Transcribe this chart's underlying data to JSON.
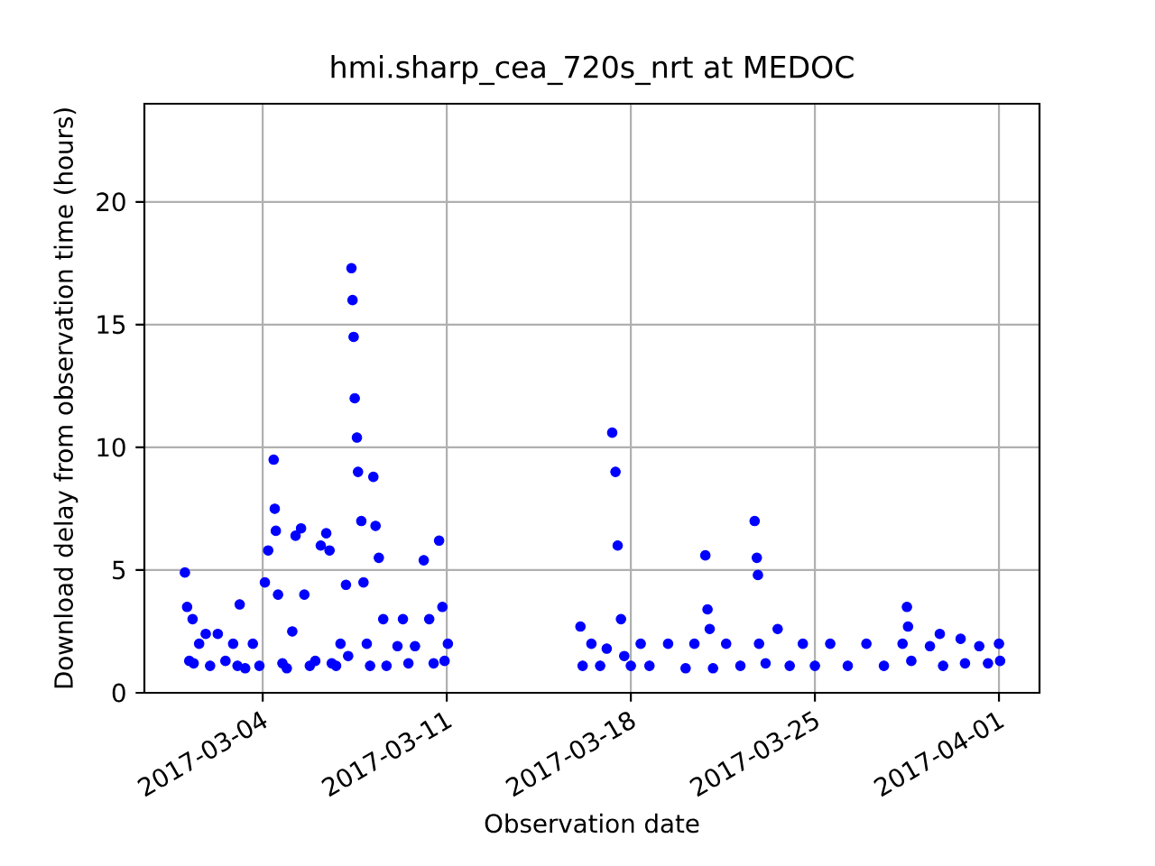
{
  "chart_data": {
    "type": "scatter",
    "title": "hmi.sharp_cea_720s_nrt at MEDOC",
    "xlabel": "Observation date",
    "ylabel": "Download delay from observation time (hours)",
    "x": [
      "2017-03-01T01:00",
      "2017-03-01T03:00",
      "2017-03-01T05:00",
      "2017-03-01T08:00",
      "2017-03-01T09:00",
      "2017-03-01T14:00",
      "2017-03-01T20:00",
      "2017-03-02T00:00",
      "2017-03-02T07:00",
      "2017-03-02T14:00",
      "2017-03-02T21:00",
      "2017-03-03T01:00",
      "2017-03-03T03:00",
      "2017-03-03T08:00",
      "2017-03-03T15:00",
      "2017-03-03T21:00",
      "2017-03-04T02:00",
      "2017-03-04T05:00",
      "2017-03-04T10:00",
      "2017-03-04T11:00",
      "2017-03-04T12:00",
      "2017-03-04T14:00",
      "2017-03-04T18:00",
      "2017-03-04T22:00",
      "2017-03-05T03:00",
      "2017-03-05T06:00",
      "2017-03-05T11:00",
      "2017-03-05T14:00",
      "2017-03-05T19:00",
      "2017-03-06T00:00",
      "2017-03-06T05:00",
      "2017-03-06T10:00",
      "2017-03-06T13:00",
      "2017-03-06T15:00",
      "2017-03-06T19:00",
      "2017-03-06T23:00",
      "2017-03-07T04:00",
      "2017-03-07T06:00",
      "2017-03-07T09:00",
      "2017-03-07T10:00",
      "2017-03-07T11:00",
      "2017-03-07T12:00",
      "2017-03-07T14:00",
      "2017-03-07T15:00",
      "2017-03-07T18:00",
      "2017-03-07T20:00",
      "2017-03-07T23:00",
      "2017-03-08T02:00",
      "2017-03-08T05:00",
      "2017-03-08T07:00",
      "2017-03-08T10:00",
      "2017-03-08T14:00",
      "2017-03-08T17:00",
      "2017-03-09T03:00",
      "2017-03-09T08:00",
      "2017-03-09T13:00",
      "2017-03-09T19:00",
      "2017-03-10T03:00",
      "2017-03-10T08:00",
      "2017-03-10T12:00",
      "2017-03-10T17:00",
      "2017-03-10T20:00",
      "2017-03-10T22:00",
      "2017-03-11T01:00",
      "2017-03-16T02:00",
      "2017-03-16T04:00",
      "2017-03-16T12:00",
      "2017-03-16T20:00",
      "2017-03-17T02:00",
      "2017-03-17T07:00",
      "2017-03-17T10:00",
      "2017-03-17T12:00",
      "2017-03-17T15:00",
      "2017-03-17T18:00",
      "2017-03-18T00:00",
      "2017-03-18T09:00",
      "2017-03-18T17:00",
      "2017-03-19T10:00",
      "2017-03-20T02:00",
      "2017-03-20T10:00",
      "2017-03-20T20:00",
      "2017-03-20T22:00",
      "2017-03-21T00:00",
      "2017-03-21T03:00",
      "2017-03-21T15:00",
      "2017-03-22T04:00",
      "2017-03-22T17:00",
      "2017-03-22T19:00",
      "2017-03-22T20:00",
      "2017-03-22T21:00",
      "2017-03-23T03:00",
      "2017-03-23T14:00",
      "2017-03-24T01:00",
      "2017-03-24T13:00",
      "2017-03-25T00:00",
      "2017-03-25T14:00",
      "2017-03-26T06:00",
      "2017-03-26T23:00",
      "2017-03-27T15:00",
      "2017-03-28T08:00",
      "2017-03-28T12:00",
      "2017-03-28T13:00",
      "2017-03-28T16:00",
      "2017-03-29T09:00",
      "2017-03-29T18:00",
      "2017-03-29T21:00",
      "2017-03-30T13:00",
      "2017-03-30T17:00",
      "2017-03-31T06:00",
      "2017-03-31T14:00",
      "2017-04-01T00:00",
      "2017-04-01T01:00"
    ],
    "values": [
      4.9,
      3.5,
      1.3,
      3.0,
      1.2,
      2.0,
      2.4,
      1.1,
      2.4,
      1.3,
      2.0,
      1.1,
      3.6,
      1.0,
      2.0,
      1.1,
      4.5,
      5.8,
      9.5,
      7.5,
      6.6,
      4.0,
      1.2,
      1.0,
      2.5,
      6.4,
      6.7,
      4.0,
      1.1,
      1.3,
      6.0,
      6.5,
      5.8,
      1.2,
      1.1,
      2.0,
      4.4,
      1.5,
      17.3,
      16.0,
      14.5,
      12.0,
      10.4,
      9.0,
      7.0,
      4.5,
      2.0,
      1.1,
      8.8,
      6.8,
      5.5,
      3.0,
      1.1,
      1.9,
      3.0,
      1.2,
      1.9,
      5.4,
      3.0,
      1.2,
      6.2,
      3.5,
      1.3,
      2.0,
      2.7,
      1.1,
      2.0,
      1.1,
      1.8,
      10.6,
      9.0,
      6.0,
      3.0,
      1.5,
      1.1,
      2.0,
      1.1,
      2.0,
      1.0,
      2.0,
      5.6,
      3.4,
      2.6,
      1.0,
      2.0,
      1.1,
      7.0,
      5.5,
      4.8,
      2.0,
      1.2,
      2.6,
      1.1,
      2.0,
      1.1,
      2.0,
      1.1,
      2.0,
      1.1,
      2.0,
      3.5,
      2.7,
      1.3,
      1.9,
      2.4,
      1.1,
      2.2,
      1.2,
      1.9,
      1.2,
      2.0,
      1.3
    ],
    "color": "#0000ff",
    "marker": "circle",
    "grid": true,
    "xlim": [
      "2017-02-27T12:00",
      "2017-04-02T13:00"
    ],
    "xticks": [
      "2017-03-04",
      "2017-03-11",
      "2017-03-18",
      "2017-03-25",
      "2017-04-01"
    ],
    "ylim": [
      0,
      24
    ],
    "yticks": [
      0,
      5,
      10,
      15,
      20
    ]
  }
}
